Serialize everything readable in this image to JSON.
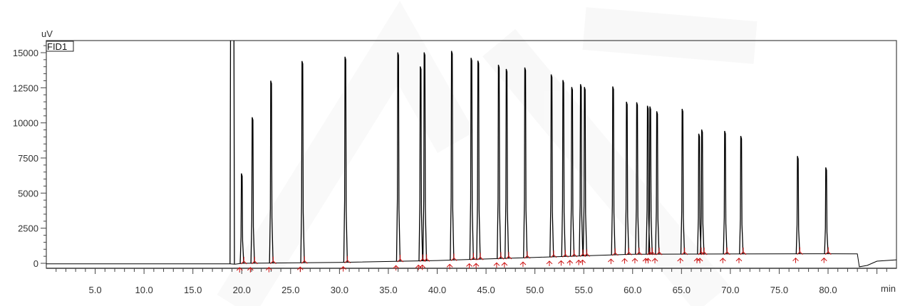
{
  "chart_data": {
    "type": "line",
    "title": "",
    "xlabel": "min",
    "ylabel": "uV",
    "legend": "FID1",
    "legend_placement": "top-left",
    "grid": false,
    "xlim": [
      0,
      87
    ],
    "ylim": [
      -900,
      15850
    ],
    "x_ticks": [
      "5.0",
      "10.0",
      "15.0",
      "20.0",
      "25.0",
      "30.0",
      "35.0",
      "40.0",
      "45.0",
      "50.0",
      "55.0",
      "60.0",
      "65.0",
      "70.0",
      "75.0",
      "80.0"
    ],
    "y_ticks": [
      "0",
      "2500",
      "5000",
      "7500",
      "10000",
      "12500",
      "15000"
    ],
    "solvent_peak": {
      "time": [
        18.85,
        19.2
      ],
      "height": "off-scale"
    },
    "peaks": [
      {
        "t": 20.0,
        "h": 6400
      },
      {
        "t": 21.1,
        "h": 10400
      },
      {
        "t": 23.0,
        "h": 13000
      },
      {
        "t": 26.2,
        "h": 14400
      },
      {
        "t": 30.6,
        "h": 14700
      },
      {
        "t": 36.0,
        "h": 15000
      },
      {
        "t": 38.3,
        "h": 14000
      },
      {
        "t": 38.7,
        "h": 15000
      },
      {
        "t": 41.5,
        "h": 15100
      },
      {
        "t": 43.5,
        "h": 14600
      },
      {
        "t": 44.2,
        "h": 14400
      },
      {
        "t": 46.3,
        "h": 14100
      },
      {
        "t": 47.1,
        "h": 13800
      },
      {
        "t": 49.0,
        "h": 13900
      },
      {
        "t": 51.7,
        "h": 13400
      },
      {
        "t": 52.9,
        "h": 13000
      },
      {
        "t": 53.8,
        "h": 12500
      },
      {
        "t": 54.7,
        "h": 12700
      },
      {
        "t": 55.1,
        "h": 12500
      },
      {
        "t": 58.0,
        "h": 12530
      },
      {
        "t": 59.4,
        "h": 11440
      },
      {
        "t": 60.45,
        "h": 11400
      },
      {
        "t": 61.55,
        "h": 11150
      },
      {
        "t": 61.8,
        "h": 11100
      },
      {
        "t": 62.5,
        "h": 10760
      },
      {
        "t": 65.1,
        "h": 10930
      },
      {
        "t": 66.8,
        "h": 9160
      },
      {
        "t": 67.1,
        "h": 9460
      },
      {
        "t": 69.45,
        "h": 9360
      },
      {
        "t": 71.1,
        "h": 9000
      },
      {
        "t": 76.9,
        "h": 7570
      },
      {
        "t": 79.8,
        "h": 6760
      }
    ],
    "baseline": [
      [
        0,
        -40
      ],
      [
        18.8,
        -40
      ],
      [
        19.3,
        -60
      ],
      [
        20,
        0
      ],
      [
        30,
        60
      ],
      [
        40,
        200
      ],
      [
        50,
        420
      ],
      [
        60,
        650
      ],
      [
        80,
        680
      ],
      [
        83,
        670
      ],
      [
        83.2,
        -250
      ],
      [
        84,
        -150
      ],
      [
        85,
        150
      ],
      [
        87,
        250
      ]
    ],
    "colors": {
      "trace": "#000000",
      "integration_marks": "#cc1111",
      "frame": "#444444"
    }
  }
}
